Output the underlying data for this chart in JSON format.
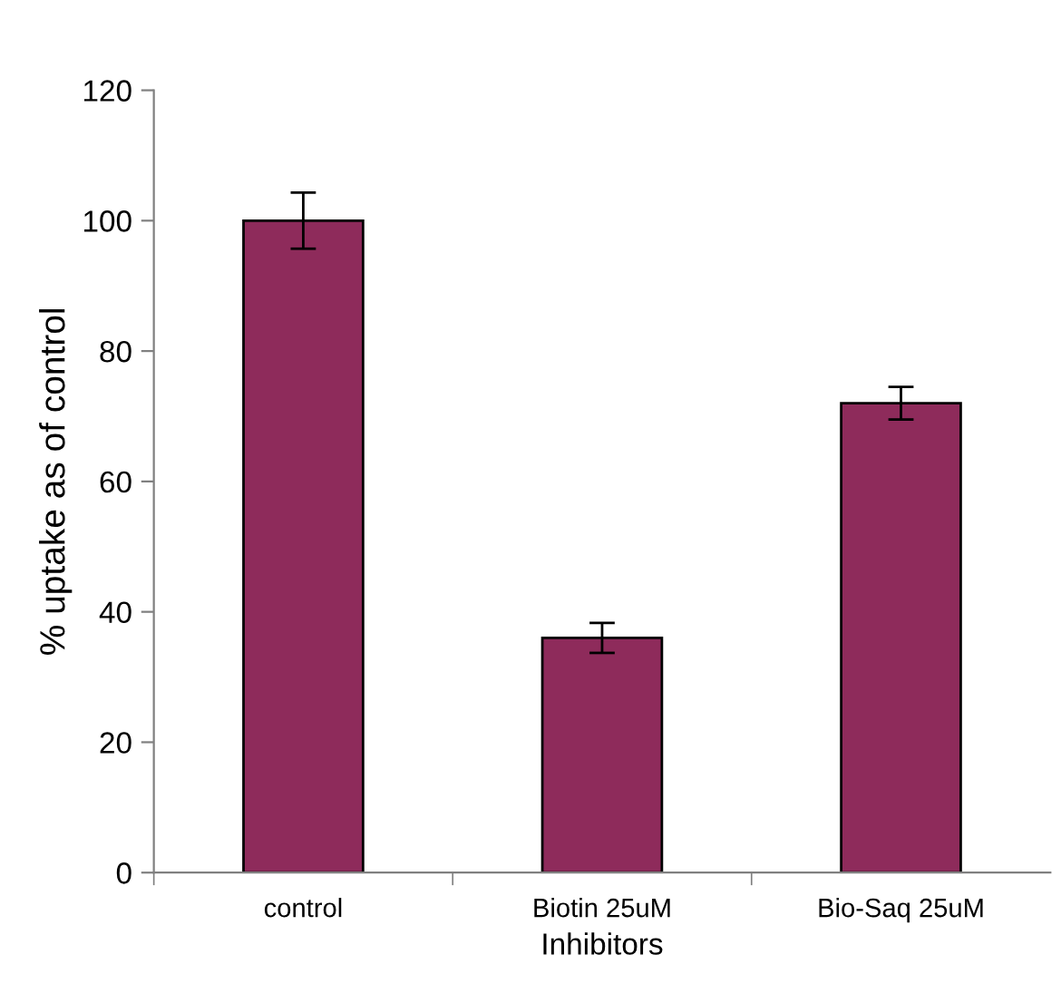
{
  "chart_data": {
    "type": "bar",
    "xlabel": "Inhibitors",
    "ylabel": "% uptake as of control",
    "categories": [
      "control",
      "Biotin 25uM",
      "Bio-Saq 25uM"
    ],
    "values": [
      100,
      36,
      72
    ],
    "errors": [
      4.3,
      2.3,
      2.5
    ],
    "color": "#8e2b5b",
    "ylim": [
      0,
      120
    ],
    "yticks": [
      0,
      20,
      40,
      60,
      80,
      100,
      120
    ],
    "grid": false,
    "legend": false
  }
}
